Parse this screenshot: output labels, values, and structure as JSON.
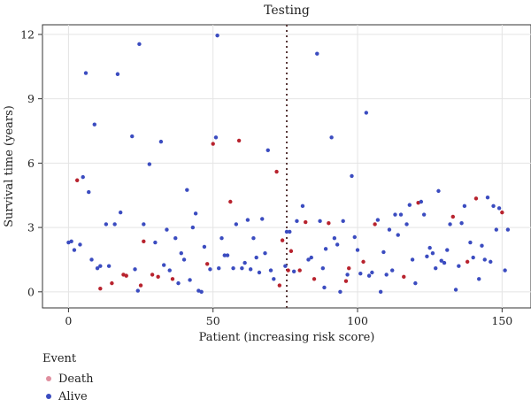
{
  "chart_data": {
    "type": "scatter",
    "title": "Testing",
    "xlabel": "Patient (increasing risk score)",
    "ylabel": "Survival time (years)",
    "xlim": [
      -9,
      160
    ],
    "ylim": [
      -0.75,
      12.45
    ],
    "x_ticks": [
      0,
      50,
      100,
      150
    ],
    "y_ticks": [
      0,
      3,
      6,
      9,
      12
    ],
    "grid": true,
    "cutoff_x": 75.5,
    "legend": {
      "title": "Event",
      "placement": "bottom-left",
      "entries": [
        {
          "label": "Death",
          "color": "#e08f9f"
        },
        {
          "label": "Alive",
          "color": "#3b4cc0"
        }
      ]
    },
    "series": [
      {
        "name": "Death",
        "color": "#b8232e",
        "points": [
          [
            3,
            5.2
          ],
          [
            11,
            0.15
          ],
          [
            15,
            0.4
          ],
          [
            19,
            0.8
          ],
          [
            20,
            0.75
          ],
          [
            25,
            0.3
          ],
          [
            26,
            2.35
          ],
          [
            29,
            0.8
          ],
          [
            31,
            0.7
          ],
          [
            36,
            0.6
          ],
          [
            48,
            1.3
          ],
          [
            50,
            6.9
          ],
          [
            56,
            4.2
          ],
          [
            59,
            7.05
          ],
          [
            72,
            5.6
          ],
          [
            73,
            0.3
          ],
          [
            74,
            2.4
          ],
          [
            76,
            1.0
          ],
          [
            77,
            1.9
          ],
          [
            80,
            1.0
          ],
          [
            82,
            3.25
          ],
          [
            85,
            0.6
          ],
          [
            90,
            3.2
          ],
          [
            96,
            0.5
          ],
          [
            97,
            1.1
          ],
          [
            102,
            1.4
          ],
          [
            106,
            3.15
          ],
          [
            116,
            0.7
          ],
          [
            121,
            4.15
          ],
          [
            133,
            3.5
          ],
          [
            138,
            1.4
          ],
          [
            141,
            4.35
          ],
          [
            150,
            3.7
          ]
        ]
      },
      {
        "name": "Alive",
        "color": "#3b4cc0",
        "points": [
          [
            0,
            2.3
          ],
          [
            1,
            2.35
          ],
          [
            2,
            1.95
          ],
          [
            4,
            2.2
          ],
          [
            5,
            5.35
          ],
          [
            6,
            10.2
          ],
          [
            7,
            4.65
          ],
          [
            8,
            1.5
          ],
          [
            9,
            7.8
          ],
          [
            10,
            1.1
          ],
          [
            11,
            1.2
          ],
          [
            13,
            3.15
          ],
          [
            14,
            1.2
          ],
          [
            16,
            3.15
          ],
          [
            17,
            10.15
          ],
          [
            18,
            3.7
          ],
          [
            22,
            7.25
          ],
          [
            23,
            1.05
          ],
          [
            24,
            0.05
          ],
          [
            24.5,
            11.55
          ],
          [
            26,
            3.15
          ],
          [
            28,
            5.95
          ],
          [
            30,
            2.3
          ],
          [
            32,
            7.0
          ],
          [
            33,
            1.25
          ],
          [
            34,
            2.9
          ],
          [
            35,
            1.0
          ],
          [
            37,
            2.5
          ],
          [
            38,
            0.4
          ],
          [
            39,
            1.8
          ],
          [
            40,
            1.5
          ],
          [
            41,
            4.75
          ],
          [
            42,
            0.55
          ],
          [
            43,
            3.0
          ],
          [
            44,
            3.65
          ],
          [
            45,
            0.05
          ],
          [
            46,
            0.0
          ],
          [
            47,
            2.1
          ],
          [
            49,
            1.05
          ],
          [
            51,
            7.2
          ],
          [
            51.5,
            11.95
          ],
          [
            52,
            1.1
          ],
          [
            53,
            2.5
          ],
          [
            54,
            1.7
          ],
          [
            55,
            1.7
          ],
          [
            57,
            1.1
          ],
          [
            58,
            3.15
          ],
          [
            60,
            1.1
          ],
          [
            61,
            1.35
          ],
          [
            62,
            3.35
          ],
          [
            63,
            1.05
          ],
          [
            64,
            2.5
          ],
          [
            65,
            1.6
          ],
          [
            66,
            0.9
          ],
          [
            67,
            3.4
          ],
          [
            68,
            1.8
          ],
          [
            69,
            6.6
          ],
          [
            70,
            1.0
          ],
          [
            71,
            0.6
          ],
          [
            75,
            1.2
          ],
          [
            75.5,
            2.8
          ],
          [
            76.5,
            2.8
          ],
          [
            78,
            0.95
          ],
          [
            79,
            3.3
          ],
          [
            81,
            4.0
          ],
          [
            83,
            1.5
          ],
          [
            84,
            1.6
          ],
          [
            86,
            11.1
          ],
          [
            87,
            3.3
          ],
          [
            88,
            1.1
          ],
          [
            88.5,
            0.2
          ],
          [
            89,
            2.0
          ],
          [
            91,
            7.2
          ],
          [
            92,
            2.5
          ],
          [
            93,
            2.2
          ],
          [
            94,
            0.0
          ],
          [
            95,
            3.3
          ],
          [
            96.5,
            0.8
          ],
          [
            98,
            5.4
          ],
          [
            99,
            2.55
          ],
          [
            100,
            1.95
          ],
          [
            101,
            0.85
          ],
          [
            103,
            8.35
          ],
          [
            104,
            0.75
          ],
          [
            105,
            0.9
          ],
          [
            107,
            3.35
          ],
          [
            108,
            0.0
          ],
          [
            109,
            1.85
          ],
          [
            110,
            0.8
          ],
          [
            111,
            2.9
          ],
          [
            112,
            1.0
          ],
          [
            113,
            3.6
          ],
          [
            114,
            2.65
          ],
          [
            115,
            3.6
          ],
          [
            117,
            3.15
          ],
          [
            118,
            4.05
          ],
          [
            119,
            1.5
          ],
          [
            120,
            0.4
          ],
          [
            122,
            4.2
          ],
          [
            123,
            3.6
          ],
          [
            124,
            1.65
          ],
          [
            125,
            2.05
          ],
          [
            126,
            1.8
          ],
          [
            127,
            1.1
          ],
          [
            128,
            4.7
          ],
          [
            129,
            1.45
          ],
          [
            130,
            1.35
          ],
          [
            131,
            1.95
          ],
          [
            132,
            3.15
          ],
          [
            134,
            0.1
          ],
          [
            135,
            1.2
          ],
          [
            136,
            3.2
          ],
          [
            137,
            4.0
          ],
          [
            139,
            2.3
          ],
          [
            140,
            1.6
          ],
          [
            142,
            0.6
          ],
          [
            143,
            2.15
          ],
          [
            144,
            1.5
          ],
          [
            145,
            4.4
          ],
          [
            146,
            1.4
          ],
          [
            147,
            4.0
          ],
          [
            148,
            2.9
          ],
          [
            149,
            3.9
          ],
          [
            151,
            1.0
          ],
          [
            152,
            2.9
          ]
        ]
      }
    ]
  }
}
